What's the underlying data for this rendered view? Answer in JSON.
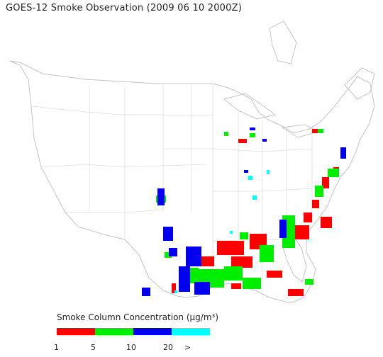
{
  "title": "GOES-12 Smoke Observation (2009 06 10  2000Z)",
  "legend": {
    "title": "Smoke Column Concentration (μg/m³)",
    "bins": [
      {
        "label": "1",
        "color": "#ff0000"
      },
      {
        "label": "5",
        "color": "#00ee00"
      },
      {
        "label": "10",
        "color": "#0000ee"
      },
      {
        "label": "20",
        "color": "#00ffff"
      }
    ],
    "end_label": ">"
  },
  "colors": {
    "land_outline": "#c8c8c8",
    "state_lines": "#dcdcdc",
    "background": "#ffffff"
  }
}
